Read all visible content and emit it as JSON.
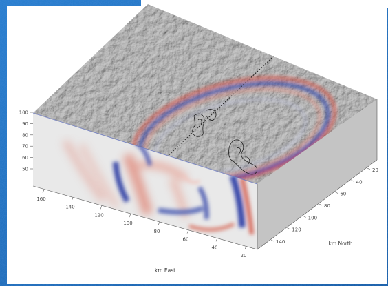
{
  "figure": {
    "z_ticks": [
      "100",
      "90",
      "80",
      "70",
      "60",
      "50"
    ],
    "x_ticks": [
      "160",
      "140",
      "120",
      "100",
      "80",
      "60",
      "40",
      "20"
    ],
    "y_ticks": [
      "20",
      "40",
      "60",
      "80",
      "100",
      "120",
      "140"
    ],
    "x_axis_label": "km East",
    "y_axis_label": "km North",
    "colors": {
      "background_border": "#1d6db8",
      "terrain": "#9a9a9a",
      "front_face": "#e8e8e8",
      "right_face": "#c4c4c4",
      "wave_positive": "#d24a3c",
      "wave_negative": "#3546a8"
    }
  }
}
